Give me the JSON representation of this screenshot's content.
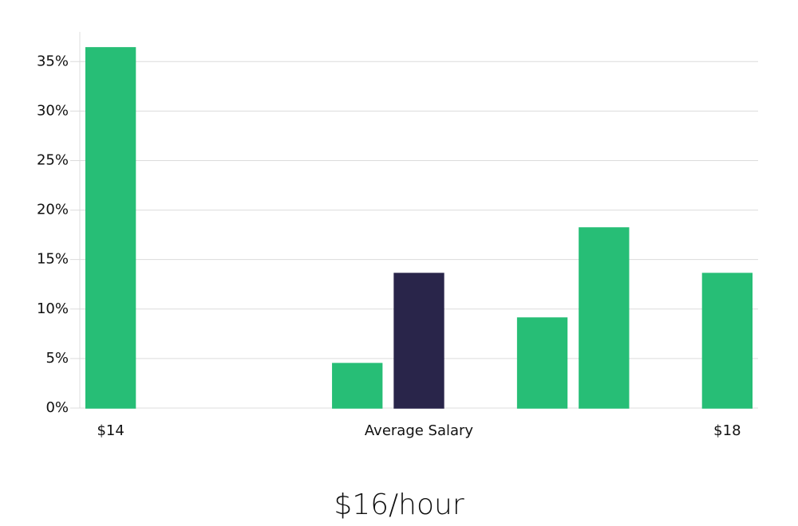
{
  "chart_data": {
    "type": "bar",
    "categories": [
      "$14",
      null,
      null,
      null,
      null,
      "Average Salary",
      null,
      null,
      null,
      null,
      "$18"
    ],
    "values": [
      36.4,
      0,
      0,
      0,
      4.5,
      13.6,
      0,
      9.1,
      18.2,
      0,
      13.6
    ],
    "colors": [
      "#27be76",
      "#27be76",
      "#27be76",
      "#27be76",
      "#27be76",
      "#29254a",
      "#27be76",
      "#27be76",
      "#27be76",
      "#27be76",
      "#27be76"
    ],
    "ylim": [
      0,
      38
    ],
    "yticks": [
      {
        "value": 0,
        "label": "0%"
      },
      {
        "value": 5,
        "label": "5%"
      },
      {
        "value": 10,
        "label": "10%"
      },
      {
        "value": 15,
        "label": "15%"
      },
      {
        "value": 20,
        "label": "20%"
      },
      {
        "value": 25,
        "label": "25%"
      },
      {
        "value": 30,
        "label": "30%"
      },
      {
        "value": 35,
        "label": "35%"
      }
    ],
    "grid": true,
    "caption": "$16/hour"
  }
}
